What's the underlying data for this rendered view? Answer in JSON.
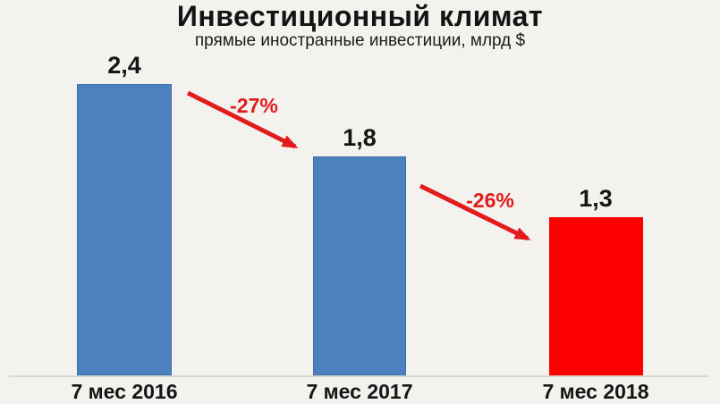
{
  "title": "Инвестиционный климат",
  "subtitle": "прямые иностранные инвестиции, млрд $",
  "chart_data": {
    "type": "bar",
    "title": "Инвестиционный климат",
    "subtitle": "прямые иностранные инвестиции, млрд $",
    "categories": [
      "7 мес 2016",
      "7 мес 2017",
      "7 мес 2018"
    ],
    "values": [
      2.4,
      1.8,
      1.3
    ],
    "value_labels": [
      "2,4",
      "1,8",
      "1,3"
    ],
    "bar_colors": [
      "#4D80BE",
      "#4D80BE",
      "#FE0000"
    ],
    "unit": "млрд $",
    "ylim": [
      0,
      2.6
    ],
    "grid": false,
    "legend": false,
    "annotations": [
      {
        "label": "-27%",
        "from": "7 мес 2016",
        "to": "7 мес 2017"
      },
      {
        "label": "-26%",
        "from": "7 мес 2017",
        "to": "7 мес 2018"
      }
    ]
  },
  "colors": {
    "background": "#F3F2EE",
    "bar_blue": "#4D80BE",
    "bar_blue_border": "#3F6FA6",
    "bar_red": "#FE0000",
    "arrow_red": "#E21B1C",
    "text": "#151515",
    "axis_line": "#D8D7D1"
  }
}
